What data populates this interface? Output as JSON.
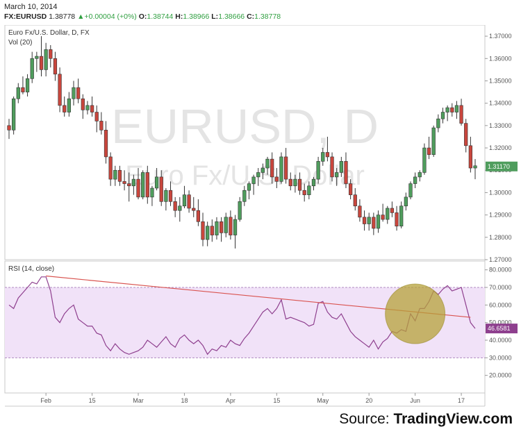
{
  "header": {
    "date": "March 10, 2014",
    "symbol": "FX:EURUSD",
    "last": "1.38778",
    "change": "+0.00004 (+0%)",
    "o_label": "O:",
    "o_value": "1.38744",
    "h_label": "H:",
    "h_value": "1.38966",
    "l_label": "L:",
    "l_value": "1.38666",
    "c_label": "C:",
    "c_value": "1.38778"
  },
  "source": {
    "prefix": "Source: ",
    "name": "TradingView.com"
  },
  "colors": {
    "up": "#4f9d5d",
    "down": "#c9463d",
    "rsi_line": "#8e3f8e",
    "rsi_band": "#f1e2f8",
    "trendline": "#d9534f",
    "highlight": "#b5a13a",
    "watermark": "#e4e4e4"
  },
  "chart_data": [
    {
      "type": "candlestick",
      "title": "Euro Fx/U.S. Dollar, D, FX",
      "volume_label": "Vol (20)",
      "watermark_main": "EURUSD, D",
      "watermark_sub": "Euro Fx/U.S. Dollar",
      "ylim": [
        1.27,
        1.375
      ],
      "y_ticks": [
        "1.27000",
        "1.28000",
        "1.29000",
        "1.30000",
        "1.31000",
        "1.32000",
        "1.33000",
        "1.34000",
        "1.35000",
        "1.36000",
        "1.37000"
      ],
      "y_tick_values": [
        1.27,
        1.28,
        1.29,
        1.3,
        1.31,
        1.32,
        1.33,
        1.34,
        1.35,
        1.36,
        1.37
      ],
      "last_price_label": "1.31170",
      "last_price": 1.3117,
      "x_ticks": [
        "Feb",
        "15",
        "Mar",
        "18",
        "Apr",
        "15",
        "May",
        "20",
        "Jun",
        "17"
      ],
      "x_tick_index": [
        8,
        18,
        28,
        38,
        48,
        58,
        68,
        78,
        88,
        98
      ],
      "candles": [
        [
          1.33,
          1.333,
          1.324,
          1.328
        ],
        [
          1.328,
          1.343,
          1.326,
          1.342
        ],
        [
          1.342,
          1.349,
          1.34,
          1.347
        ],
        [
          1.347,
          1.352,
          1.344,
          1.345
        ],
        [
          1.345,
          1.353,
          1.343,
          1.351
        ],
        [
          1.351,
          1.363,
          1.349,
          1.36
        ],
        [
          1.36,
          1.363,
          1.354,
          1.361
        ],
        [
          1.361,
          1.37,
          1.352,
          1.355
        ],
        [
          1.355,
          1.367,
          1.352,
          1.364
        ],
        [
          1.364,
          1.366,
          1.356,
          1.36
        ],
        [
          1.36,
          1.363,
          1.35,
          1.353
        ],
        [
          1.353,
          1.356,
          1.336,
          1.339
        ],
        [
          1.339,
          1.343,
          1.334,
          1.336
        ],
        [
          1.336,
          1.345,
          1.334,
          1.342
        ],
        [
          1.342,
          1.35,
          1.339,
          1.347
        ],
        [
          1.347,
          1.351,
          1.34,
          1.342
        ],
        [
          1.342,
          1.344,
          1.333,
          1.337
        ],
        [
          1.337,
          1.341,
          1.335,
          1.339
        ],
        [
          1.339,
          1.343,
          1.334,
          1.336
        ],
        [
          1.336,
          1.339,
          1.327,
          1.332
        ],
        [
          1.332,
          1.336,
          1.326,
          1.328
        ],
        [
          1.328,
          1.332,
          1.313,
          1.316
        ],
        [
          1.316,
          1.318,
          1.303,
          1.306
        ],
        [
          1.306,
          1.312,
          1.303,
          1.31
        ],
        [
          1.31,
          1.312,
          1.303,
          1.305
        ],
        [
          1.305,
          1.31,
          1.301,
          1.304
        ],
        [
          1.304,
          1.309,
          1.296,
          1.303
        ],
        [
          1.303,
          1.308,
          1.299,
          1.306
        ],
        [
          1.306,
          1.311,
          1.297,
          1.298
        ],
        [
          1.298,
          1.31,
          1.297,
          1.309
        ],
        [
          1.309,
          1.312,
          1.295,
          1.298
        ],
        [
          1.298,
          1.303,
          1.294,
          1.302
        ],
        [
          1.302,
          1.311,
          1.301,
          1.307
        ],
        [
          1.307,
          1.31,
          1.294,
          1.296
        ],
        [
          1.296,
          1.302,
          1.292,
          1.301
        ],
        [
          1.301,
          1.305,
          1.294,
          1.296
        ],
        [
          1.296,
          1.298,
          1.289,
          1.292
        ],
        [
          1.292,
          1.298,
          1.287,
          1.294
        ],
        [
          1.294,
          1.303,
          1.293,
          1.299
        ],
        [
          1.299,
          1.301,
          1.291,
          1.293
        ],
        [
          1.293,
          1.298,
          1.289,
          1.292
        ],
        [
          1.292,
          1.297,
          1.285,
          1.287
        ],
        [
          1.287,
          1.291,
          1.276,
          1.279
        ],
        [
          1.279,
          1.287,
          1.276,
          1.285
        ],
        [
          1.285,
          1.288,
          1.278,
          1.281
        ],
        [
          1.281,
          1.289,
          1.279,
          1.287
        ],
        [
          1.287,
          1.289,
          1.278,
          1.282
        ],
        [
          1.282,
          1.291,
          1.28,
          1.289
        ],
        [
          1.289,
          1.292,
          1.279,
          1.281
        ],
        [
          1.281,
          1.29,
          1.275,
          1.288
        ],
        [
          1.288,
          1.298,
          1.287,
          1.296
        ],
        [
          1.296,
          1.303,
          1.294,
          1.301
        ],
        [
          1.301,
          1.305,
          1.297,
          1.304
        ],
        [
          1.304,
          1.308,
          1.299,
          1.307
        ],
        [
          1.307,
          1.311,
          1.303,
          1.309
        ],
        [
          1.309,
          1.313,
          1.306,
          1.311
        ],
        [
          1.311,
          1.316,
          1.308,
          1.315
        ],
        [
          1.315,
          1.318,
          1.304,
          1.307
        ],
        [
          1.307,
          1.311,
          1.302,
          1.305
        ],
        [
          1.305,
          1.318,
          1.304,
          1.316
        ],
        [
          1.316,
          1.32,
          1.304,
          1.306
        ],
        [
          1.306,
          1.309,
          1.301,
          1.303
        ],
        [
          1.303,
          1.308,
          1.3,
          1.306
        ],
        [
          1.306,
          1.309,
          1.299,
          1.301
        ],
        [
          1.301,
          1.304,
          1.296,
          1.299
        ],
        [
          1.299,
          1.305,
          1.297,
          1.303
        ],
        [
          1.303,
          1.307,
          1.301,
          1.306
        ],
        [
          1.306,
          1.316,
          1.304,
          1.314
        ],
        [
          1.314,
          1.32,
          1.312,
          1.318
        ],
        [
          1.318,
          1.325,
          1.314,
          1.316
        ],
        [
          1.316,
          1.318,
          1.305,
          1.307
        ],
        [
          1.307,
          1.311,
          1.303,
          1.309
        ],
        [
          1.309,
          1.316,
          1.307,
          1.314
        ],
        [
          1.314,
          1.318,
          1.302,
          1.304
        ],
        [
          1.304,
          1.306,
          1.297,
          1.299
        ],
        [
          1.299,
          1.302,
          1.292,
          1.294
        ],
        [
          1.294,
          1.297,
          1.287,
          1.289
        ],
        [
          1.289,
          1.292,
          1.283,
          1.286
        ],
        [
          1.286,
          1.291,
          1.283,
          1.289
        ],
        [
          1.289,
          1.291,
          1.281,
          1.284
        ],
        [
          1.284,
          1.292,
          1.282,
          1.29
        ],
        [
          1.29,
          1.295,
          1.287,
          1.288
        ],
        [
          1.288,
          1.294,
          1.286,
          1.293
        ],
        [
          1.293,
          1.296,
          1.289,
          1.291
        ],
        [
          1.291,
          1.294,
          1.283,
          1.285
        ],
        [
          1.285,
          1.296,
          1.284,
          1.294
        ],
        [
          1.294,
          1.3,
          1.292,
          1.298
        ],
        [
          1.298,
          1.305,
          1.297,
          1.304
        ],
        [
          1.304,
          1.309,
          1.302,
          1.307
        ],
        [
          1.307,
          1.31,
          1.305,
          1.309
        ],
        [
          1.309,
          1.322,
          1.308,
          1.32
        ],
        [
          1.32,
          1.325,
          1.315,
          1.317
        ],
        [
          1.317,
          1.33,
          1.316,
          1.329
        ],
        [
          1.329,
          1.335,
          1.327,
          1.333
        ],
        [
          1.333,
          1.338,
          1.331,
          1.336
        ],
        [
          1.336,
          1.339,
          1.332,
          1.338
        ],
        [
          1.338,
          1.34,
          1.334,
          1.336
        ],
        [
          1.336,
          1.341,
          1.333,
          1.339
        ],
        [
          1.339,
          1.342,
          1.33,
          1.331
        ],
        [
          1.331,
          1.333,
          1.318,
          1.321
        ],
        [
          1.321,
          1.325,
          1.309,
          1.311
        ],
        [
          1.311,
          1.315,
          1.306,
          1.312
        ]
      ]
    },
    {
      "type": "line",
      "title": "RSI (14, close)",
      "ylim": [
        10,
        85
      ],
      "y_ticks": [
        "20.0000",
        "30.0000",
        "40.0000",
        "50.0000",
        "60.0000",
        "70.0000",
        "80.0000"
      ],
      "y_tick_values": [
        20,
        30,
        40,
        50,
        60,
        70,
        80
      ],
      "band": [
        30,
        70
      ],
      "last_value_label": "46.6581",
      "last_value": 46.6581,
      "trendline": {
        "from": [
          8,
          76.5
        ],
        "to": [
          100,
          53
        ]
      },
      "highlight_center": [
        88,
        55
      ],
      "values": [
        60,
        58,
        64,
        67,
        70,
        73,
        72,
        76,
        76,
        68,
        53,
        50,
        55,
        58,
        60,
        52,
        50,
        48,
        48,
        44,
        43,
        37,
        34,
        38,
        35,
        33,
        32,
        33,
        34,
        36,
        40,
        38,
        36,
        39,
        42,
        38,
        36,
        41,
        43,
        40,
        38,
        40,
        37,
        32,
        35,
        34,
        37,
        36,
        40,
        38,
        37,
        41,
        44,
        48,
        52,
        56,
        58,
        55,
        58,
        63,
        52,
        53,
        52,
        51,
        50,
        48,
        49,
        61,
        62,
        56,
        53,
        52,
        55,
        50,
        45,
        42,
        40,
        38,
        36,
        40,
        35,
        39,
        41,
        45,
        44,
        46,
        45,
        55,
        51,
        58,
        58,
        62,
        68,
        66,
        69,
        71,
        68,
        69,
        70,
        60,
        50,
        46.6581
      ]
    }
  ]
}
